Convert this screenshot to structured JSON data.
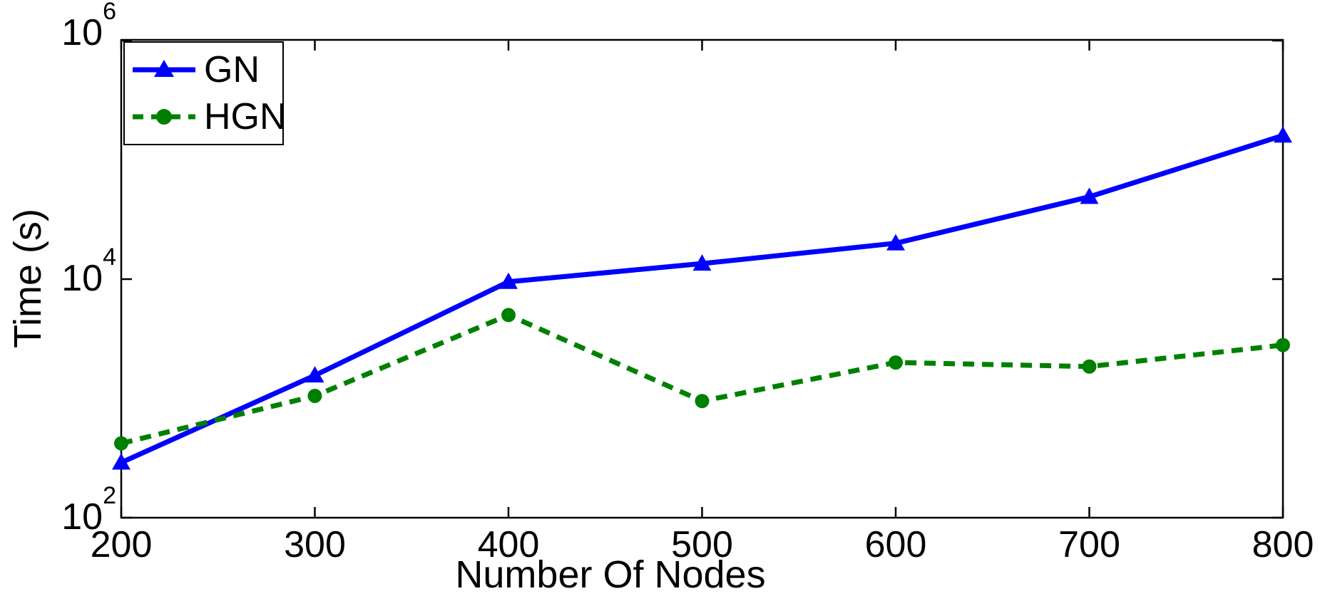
{
  "chart_data": {
    "type": "line",
    "title": "",
    "xlabel": "Number Of Nodes",
    "ylabel": "Time (s)",
    "x": [
      200,
      300,
      400,
      500,
      600,
      700,
      800
    ],
    "x_tick_labels": [
      "200",
      "300",
      "400",
      "500",
      "600",
      "700",
      "800"
    ],
    "xlim": [
      200,
      800
    ],
    "y_scale": "log",
    "ylim": [
      100,
      1000000
    ],
    "ylim_exponents": [
      2,
      6
    ],
    "y_ticks": [
      {
        "base": "10",
        "exp": "2"
      },
      {
        "base": "10",
        "exp": "4"
      },
      {
        "base": "10",
        "exp": "6"
      }
    ],
    "grid": false,
    "legend_position": "top-left",
    "background_color": "#ffffff",
    "axis_color": "#000000",
    "series": [
      {
        "name": "GN",
        "color": "#0000ff",
        "line_style": "solid",
        "marker": "triangle-up",
        "values": [
          290,
          1560,
          9500,
          13500,
          20000,
          49000,
          160000
        ]
      },
      {
        "name": "HGN",
        "color": "#008000",
        "line_style": "dashed",
        "marker": "circle",
        "values": [
          420,
          1050,
          5000,
          950,
          2000,
          1850,
          2800
        ]
      }
    ]
  }
}
